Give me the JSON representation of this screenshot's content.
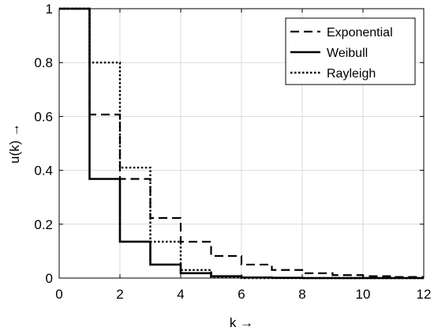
{
  "chart_data": {
    "type": "line",
    "step": true,
    "title": "",
    "xlabel": "k →",
    "ylabel": "u(k) →",
    "xlim": [
      0,
      12
    ],
    "ylim": [
      0,
      1
    ],
    "grid": true,
    "legend_position": "top-right",
    "x_ticks": [
      0,
      2,
      4,
      6,
      8,
      10,
      12
    ],
    "y_ticks": [
      0,
      0.2,
      0.4,
      0.6,
      0.8,
      1
    ],
    "x_tick_labels": [
      "0",
      "2",
      "4",
      "6",
      "8",
      "10",
      "12"
    ],
    "y_tick_labels": [
      "0",
      "0.2",
      "0.4",
      "0.6",
      "0.8",
      "1"
    ],
    "series": [
      {
        "name": "Exponential",
        "line_style": "dashed",
        "color": "#000000",
        "x": [
          0,
          1,
          2,
          3,
          4,
          5,
          6,
          7,
          8,
          9,
          10,
          11
        ],
        "y": [
          1,
          0.607,
          0.368,
          0.223,
          0.135,
          0.082,
          0.05,
          0.03,
          0.018,
          0.011,
          0.007,
          0.004
        ]
      },
      {
        "name": "Weibull",
        "line_style": "solid",
        "color": "#000000",
        "x": [
          0,
          1,
          2,
          3,
          4,
          5,
          6,
          7,
          8,
          9,
          10,
          11
        ],
        "y": [
          1,
          0.368,
          0.135,
          0.05,
          0.018,
          0.007,
          0.002,
          0.001,
          0.0,
          0.0,
          0.0,
          0.0
        ]
      },
      {
        "name": "Rayleigh",
        "line_style": "dotted",
        "color": "#000000",
        "x": [
          0,
          1,
          2,
          3,
          4,
          5,
          6,
          7,
          8,
          9,
          10,
          11
        ],
        "y": [
          1,
          0.8,
          0.41,
          0.135,
          0.03,
          0.004,
          0.0,
          0.0,
          0.0,
          0.0,
          0.0,
          0.0
        ]
      }
    ]
  }
}
